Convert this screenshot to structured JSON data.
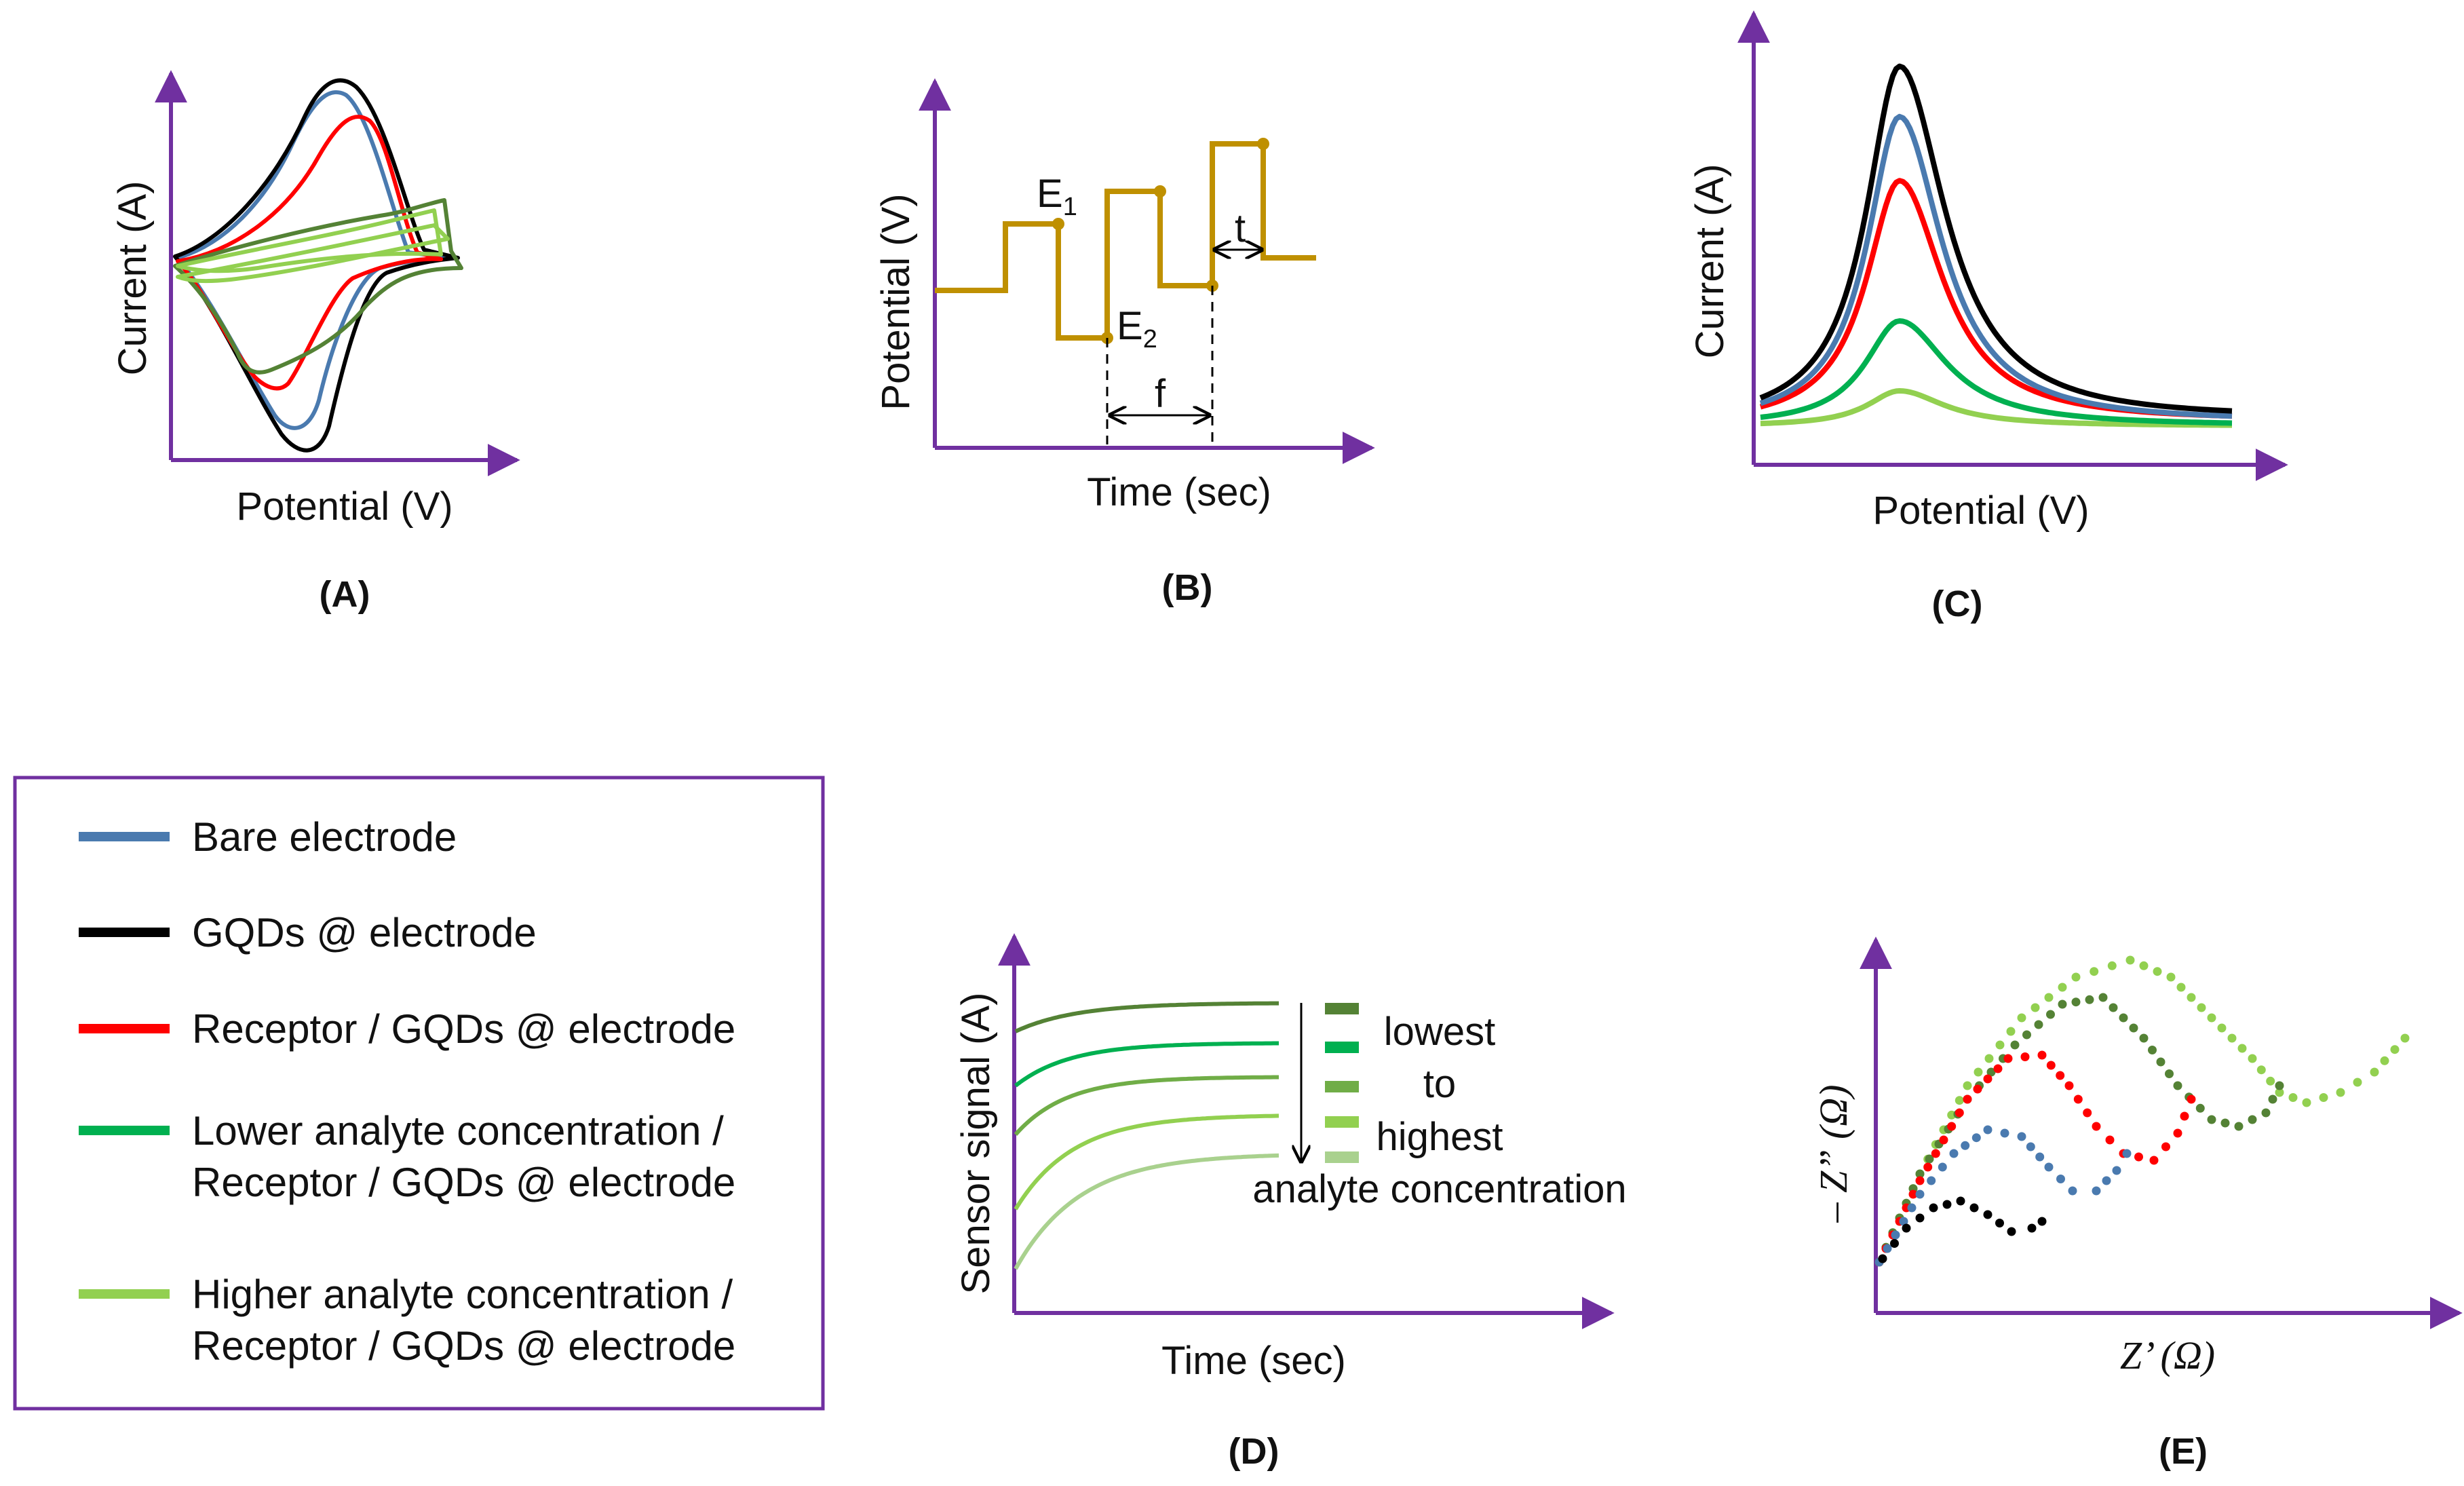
{
  "colors": {
    "axis": "#7030a0",
    "bare": "#4a7aaf",
    "gqds": "#000000",
    "receptor": "#ff0000",
    "lower": "#00b050",
    "higher": "#92d050",
    "darkgreen": "#548235",
    "medgreen": "#70ad47",
    "palegreen": "#a9d18e",
    "step": "#bf9000"
  },
  "panels": {
    "a": {
      "label": "(A)",
      "xlabel": "Potential (V)",
      "ylabel": "Current (A)"
    },
    "b": {
      "label": "(B)",
      "xlabel": "Time (sec)",
      "ylabel": "Potential (V)",
      "e1": "E",
      "e1_sub": "1",
      "e2": "E",
      "e2_sub": "2",
      "f": "f",
      "t": "t"
    },
    "c": {
      "label": "(C)",
      "xlabel": "Potential (V)",
      "ylabel": "Current (A)"
    },
    "d": {
      "label": "(D)",
      "xlabel": "Time (sec)",
      "ylabel": "Sensor signal (A)",
      "annotation": [
        "lowest",
        "to",
        "highest",
        "analyte concentration"
      ]
    },
    "e": {
      "label": "(E)",
      "xlabel": "Z’ (Ω)",
      "ylabel": "– Z” (Ω)"
    }
  },
  "legend": [
    {
      "lines": [
        "Bare electrode"
      ],
      "color": "#4a7aaf"
    },
    {
      "lines": [
        "GQDs @ electrode"
      ],
      "color": "#000000"
    },
    {
      "lines": [
        "Receptor / GQDs @ electrode"
      ],
      "color": "#ff0000"
    },
    {
      "lines": [
        "Lower analyte concentration /",
        "Receptor / GQDs @ electrode"
      ],
      "color": "#00b050"
    },
    {
      "lines": [
        "Higher analyte concentration /",
        "Receptor / GQDs @ electrode"
      ],
      "color": "#92d050"
    }
  ]
}
